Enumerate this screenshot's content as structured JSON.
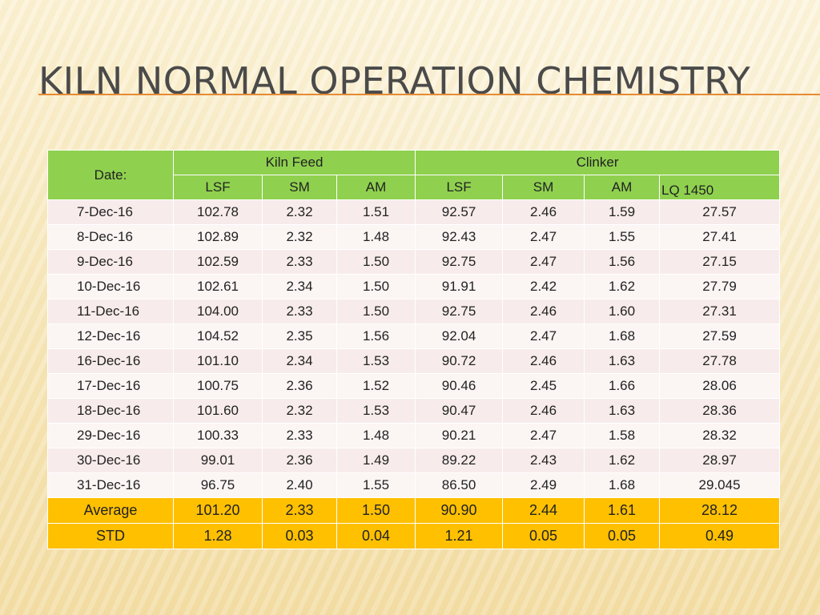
{
  "slide": {
    "title": "KILN NORMAL OPERATION CHEMISTRY"
  },
  "table": {
    "date_header": "Date:",
    "group_kiln_feed": "Kiln Feed",
    "group_clinker": "Clinker",
    "sub_headers": [
      "LSF",
      "SM",
      "AM",
      "LSF",
      "SM",
      "AM",
      "LQ 1450"
    ],
    "rows": [
      [
        "7-Dec-16",
        "102.78",
        "2.32",
        "1.51",
        "92.57",
        "2.46",
        "1.59",
        "27.57"
      ],
      [
        "8-Dec-16",
        "102.89",
        "2.32",
        "1.48",
        "92.43",
        "2.47",
        "1.55",
        "27.41"
      ],
      [
        "9-Dec-16",
        "102.59",
        "2.33",
        "1.50",
        "92.75",
        "2.47",
        "1.56",
        "27.15"
      ],
      [
        "10-Dec-16",
        "102.61",
        "2.34",
        "1.50",
        "91.91",
        "2.42",
        "1.62",
        "27.79"
      ],
      [
        "11-Dec-16",
        "104.00",
        "2.33",
        "1.50",
        "92.75",
        "2.46",
        "1.60",
        "27.31"
      ],
      [
        "12-Dec-16",
        "104.52",
        "2.35",
        "1.56",
        "92.04",
        "2.47",
        "1.68",
        "27.59"
      ],
      [
        "16-Dec-16",
        "101.10",
        "2.34",
        "1.53",
        "90.72",
        "2.46",
        "1.63",
        "27.78"
      ],
      [
        "17-Dec-16",
        "100.75",
        "2.36",
        "1.52",
        "90.46",
        "2.45",
        "1.66",
        "28.06"
      ],
      [
        "18-Dec-16",
        "101.60",
        "2.32",
        "1.53",
        "90.47",
        "2.46",
        "1.63",
        "28.36"
      ],
      [
        "29-Dec-16",
        "100.33",
        "2.33",
        "1.48",
        "90.21",
        "2.47",
        "1.58",
        "28.32"
      ],
      [
        "30-Dec-16",
        "99.01",
        "2.36",
        "1.49",
        "89.22",
        "2.43",
        "1.62",
        "28.97"
      ],
      [
        "31-Dec-16",
        "96.75",
        "2.40",
        "1.55",
        "86.50",
        "2.49",
        "1.68",
        "29.045"
      ]
    ],
    "summary": [
      [
        "Average",
        "101.20",
        "2.33",
        "1.50",
        "90.90",
        "2.44",
        "1.61",
        "28.12"
      ],
      [
        "STD",
        "1.28",
        "0.03",
        "0.04",
        "1.21",
        "0.05",
        "0.05",
        "0.49"
      ]
    ]
  }
}
